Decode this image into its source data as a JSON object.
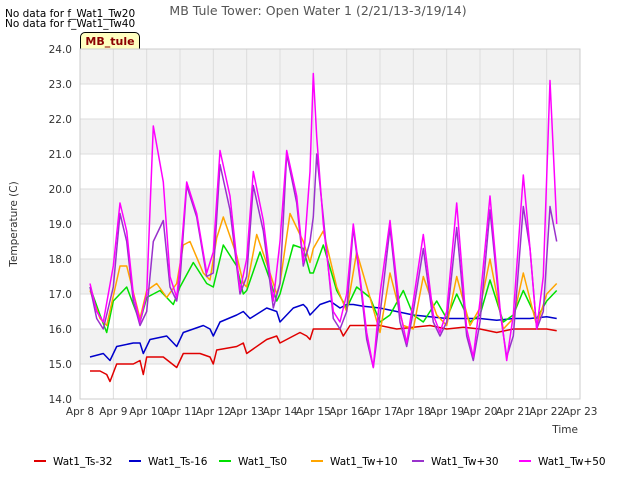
{
  "notes": [
    "No data for f_Wat1_Tw20",
    "No data for f_Wat1_Tw40"
  ],
  "site_label": "MB_tule",
  "chart_data": {
    "type": "line",
    "title": "MB Tule Tower: Open Water 1 (2/21/13-3/19/14)",
    "xlabel": "Time",
    "ylabel": "Temperature (C)",
    "xlim": [
      8,
      23
    ],
    "ylim": [
      14.0,
      24.0
    ],
    "x_ticks": [
      8,
      9,
      10,
      11,
      12,
      13,
      14,
      15,
      16,
      17,
      18,
      19,
      20,
      21,
      22,
      23
    ],
    "x_tick_labels": [
      "Apr 8",
      "Apr 9",
      "Apr 10",
      "Apr 11",
      "Apr 12",
      "Apr 13",
      "Apr 14",
      "Apr 15",
      "Apr 16",
      "Apr 17",
      "Apr 18",
      "Apr 19",
      "Apr 20",
      "Apr 21",
      "Apr 22",
      "Apr 23"
    ],
    "y_ticks": [
      14.0,
      15.0,
      16.0,
      17.0,
      18.0,
      19.0,
      20.0,
      21.0,
      22.0,
      23.0,
      24.0
    ],
    "y_tick_labels": [
      "14.0",
      "15.0",
      "16.0",
      "17.0",
      "18.0",
      "19.0",
      "20.0",
      "21.0",
      "22.0",
      "23.0",
      "24.0"
    ],
    "grid": true,
    "legend_position": "bottom",
    "series": [
      {
        "name": "Wat1_Ts-32",
        "color": "#e00000",
        "x": [
          8.3,
          8.6,
          8.8,
          8.9,
          9.1,
          9.6,
          9.8,
          9.9,
          10.0,
          10.5,
          10.9,
          11.1,
          11.6,
          11.9,
          12.0,
          12.1,
          12.7,
          12.9,
          13.0,
          13.6,
          13.9,
          14.0,
          14.4,
          14.6,
          14.8,
          14.9,
          15.0,
          15.5,
          15.8,
          15.9,
          16.1,
          16.5,
          17.0,
          17.5,
          18.0,
          18.5,
          19.0,
          19.5,
          20.0,
          20.5,
          21.0,
          21.5,
          22.0,
          22.3
        ],
        "y": [
          14.8,
          14.8,
          14.7,
          14.5,
          15.0,
          15.0,
          15.1,
          14.7,
          15.2,
          15.2,
          14.9,
          15.3,
          15.3,
          15.2,
          15.0,
          15.4,
          15.5,
          15.6,
          15.3,
          15.7,
          15.8,
          15.6,
          15.8,
          15.9,
          15.8,
          15.7,
          16.0,
          16.0,
          16.0,
          15.8,
          16.1,
          16.1,
          16.1,
          16.0,
          16.05,
          16.1,
          16.0,
          16.05,
          16.0,
          15.9,
          16.0,
          16.0,
          16.0,
          15.95
        ]
      },
      {
        "name": "Wat1_Ts-16",
        "color": "#0000cc",
        "x": [
          8.3,
          8.7,
          8.9,
          9.1,
          9.6,
          9.8,
          9.9,
          10.1,
          10.6,
          10.9,
          11.1,
          11.7,
          11.9,
          12.0,
          12.2,
          12.7,
          12.9,
          13.1,
          13.6,
          13.9,
          14.0,
          14.4,
          14.7,
          14.8,
          14.9,
          15.2,
          15.5,
          15.8,
          16.0,
          16.2,
          16.5,
          17.0,
          17.5,
          18.0,
          18.5,
          19.0,
          19.5,
          20.0,
          20.5,
          21.0,
          21.5,
          22.0,
          22.3
        ],
        "y": [
          15.2,
          15.3,
          15.1,
          15.5,
          15.6,
          15.6,
          15.3,
          15.7,
          15.8,
          15.5,
          15.9,
          16.1,
          16.0,
          15.8,
          16.2,
          16.4,
          16.5,
          16.3,
          16.6,
          16.5,
          16.2,
          16.6,
          16.7,
          16.6,
          16.4,
          16.7,
          16.8,
          16.6,
          16.7,
          16.7,
          16.65,
          16.6,
          16.5,
          16.4,
          16.35,
          16.3,
          16.3,
          16.3,
          16.25,
          16.3,
          16.3,
          16.35,
          16.3
        ]
      },
      {
        "name": "Wat1_Ts0",
        "color": "#00e000",
        "x": [
          8.3,
          8.6,
          8.8,
          9.0,
          9.4,
          9.8,
          10.0,
          10.4,
          10.8,
          11.0,
          11.4,
          11.8,
          12.0,
          12.3,
          12.7,
          12.9,
          13.0,
          13.4,
          13.7,
          13.9,
          14.0,
          14.4,
          14.7,
          14.9,
          15.0,
          15.3,
          15.7,
          16.0,
          16.3,
          16.7,
          17.0,
          17.3,
          17.7,
          18.0,
          18.3,
          18.7,
          19.0,
          19.3,
          19.7,
          20.0,
          20.3,
          20.7,
          21.0,
          21.3,
          21.7,
          22.0,
          22.3
        ],
        "y": [
          17.2,
          16.4,
          15.9,
          16.8,
          17.2,
          16.2,
          16.9,
          17.1,
          16.7,
          17.2,
          17.9,
          17.3,
          17.2,
          18.4,
          17.8,
          17.0,
          17.1,
          18.2,
          17.4,
          16.8,
          17.0,
          18.4,
          18.3,
          17.6,
          17.6,
          18.4,
          17.1,
          16.6,
          17.2,
          16.9,
          16.2,
          16.4,
          17.1,
          16.4,
          16.2,
          16.8,
          16.3,
          17.0,
          16.2,
          16.4,
          17.4,
          16.2,
          16.4,
          17.1,
          16.3,
          16.8,
          17.1
        ]
      },
      {
        "name": "Wat1_Tw+10",
        "color": "#ffa500",
        "x": [
          8.3,
          8.6,
          8.8,
          9.2,
          9.4,
          9.8,
          10.0,
          10.3,
          10.6,
          10.9,
          11.1,
          11.3,
          11.7,
          11.9,
          12.1,
          12.3,
          12.7,
          12.9,
          13.0,
          13.3,
          13.7,
          13.9,
          14.0,
          14.3,
          14.7,
          14.9,
          15.0,
          15.3,
          15.7,
          16.0,
          16.3,
          16.7,
          17.0,
          17.3,
          17.7,
          18.0,
          18.3,
          18.7,
          19.0,
          19.3,
          19.7,
          20.0,
          20.3,
          20.7,
          21.0,
          21.3,
          21.7,
          22.0,
          22.3
        ],
        "y": [
          17.1,
          16.3,
          16.1,
          17.8,
          17.8,
          16.3,
          17.1,
          17.3,
          16.9,
          17.3,
          18.4,
          18.5,
          17.6,
          17.4,
          18.6,
          19.2,
          18.1,
          17.3,
          17.2,
          18.7,
          17.6,
          17.0,
          17.3,
          19.3,
          18.5,
          17.9,
          18.3,
          18.8,
          17.2,
          16.5,
          18.2,
          16.9,
          15.9,
          17.6,
          16.1,
          16.0,
          17.5,
          16.4,
          16.1,
          17.5,
          16.1,
          16.6,
          18.0,
          16.0,
          16.3,
          17.6,
          16.1,
          17.0,
          17.3
        ]
      },
      {
        "name": "Wat1_Tw+30",
        "color": "#9932cc",
        "x": [
          8.3,
          8.5,
          8.7,
          9.0,
          9.2,
          9.4,
          9.6,
          9.8,
          10.0,
          10.2,
          10.5,
          10.7,
          10.9,
          11.0,
          11.2,
          11.5,
          11.8,
          12.0,
          12.2,
          12.5,
          12.8,
          13.0,
          13.2,
          13.5,
          13.8,
          14.0,
          14.2,
          14.5,
          14.7,
          14.9,
          15.0,
          15.1,
          15.3,
          15.6,
          15.8,
          16.0,
          16.2,
          16.4,
          16.6,
          16.8,
          17.0,
          17.3,
          17.6,
          17.8,
          18.0,
          18.3,
          18.6,
          18.8,
          19.0,
          19.3,
          19.6,
          19.8,
          20.0,
          20.3,
          20.6,
          20.8,
          21.0,
          21.3,
          21.5,
          21.7,
          21.9,
          22.1,
          22.3
        ],
        "y": [
          17.2,
          16.3,
          16.0,
          17.2,
          19.3,
          18.5,
          16.8,
          16.1,
          16.5,
          18.5,
          19.1,
          17.2,
          16.8,
          17.4,
          20.1,
          19.2,
          17.5,
          17.6,
          20.7,
          19.4,
          17.0,
          17.5,
          20.1,
          18.8,
          16.6,
          17.3,
          21.0,
          19.6,
          17.8,
          18.5,
          19.2,
          21.0,
          19.2,
          16.3,
          16.0,
          16.5,
          18.9,
          17.4,
          15.7,
          14.9,
          16.4,
          18.9,
          16.2,
          15.5,
          16.5,
          18.3,
          16.2,
          15.8,
          16.2,
          18.9,
          15.8,
          15.1,
          16.2,
          19.4,
          16.5,
          15.2,
          15.8,
          19.5,
          18.3,
          16.0,
          16.5,
          19.5,
          18.5
        ]
      },
      {
        "name": "Wat1_Tw+50",
        "color": "#ff00ff",
        "x": [
          8.3,
          8.5,
          8.7,
          9.0,
          9.2,
          9.4,
          9.6,
          9.8,
          10.0,
          10.2,
          10.5,
          10.7,
          10.9,
          11.0,
          11.2,
          11.5,
          11.8,
          12.0,
          12.2,
          12.5,
          12.8,
          13.0,
          13.2,
          13.5,
          13.8,
          14.0,
          14.2,
          14.5,
          14.7,
          14.9,
          15.0,
          15.1,
          15.3,
          15.6,
          15.8,
          16.0,
          16.2,
          16.4,
          16.6,
          16.8,
          17.0,
          17.3,
          17.6,
          17.8,
          18.0,
          18.3,
          18.6,
          18.8,
          19.0,
          19.3,
          19.6,
          19.8,
          20.0,
          20.3,
          20.6,
          20.8,
          21.0,
          21.3,
          21.5,
          21.7,
          21.9,
          22.1,
          22.3
        ],
        "y": [
          17.3,
          16.5,
          16.2,
          17.8,
          19.6,
          18.8,
          17.0,
          16.2,
          17.0,
          21.8,
          20.2,
          17.5,
          16.9,
          17.8,
          20.2,
          19.3,
          17.6,
          18.2,
          21.1,
          19.8,
          17.1,
          18.0,
          20.5,
          19.1,
          16.8,
          18.5,
          21.1,
          19.8,
          17.9,
          20.5,
          23.3,
          21.5,
          19.0,
          16.5,
          16.2,
          17.0,
          19.0,
          17.5,
          15.9,
          14.9,
          17.0,
          19.1,
          16.5,
          15.6,
          16.8,
          18.7,
          16.4,
          15.9,
          16.5,
          19.6,
          16.0,
          15.2,
          16.8,
          19.8,
          16.6,
          15.1,
          16.4,
          20.4,
          18.3,
          16.0,
          17.5,
          23.1,
          19.0
        ]
      }
    ]
  }
}
